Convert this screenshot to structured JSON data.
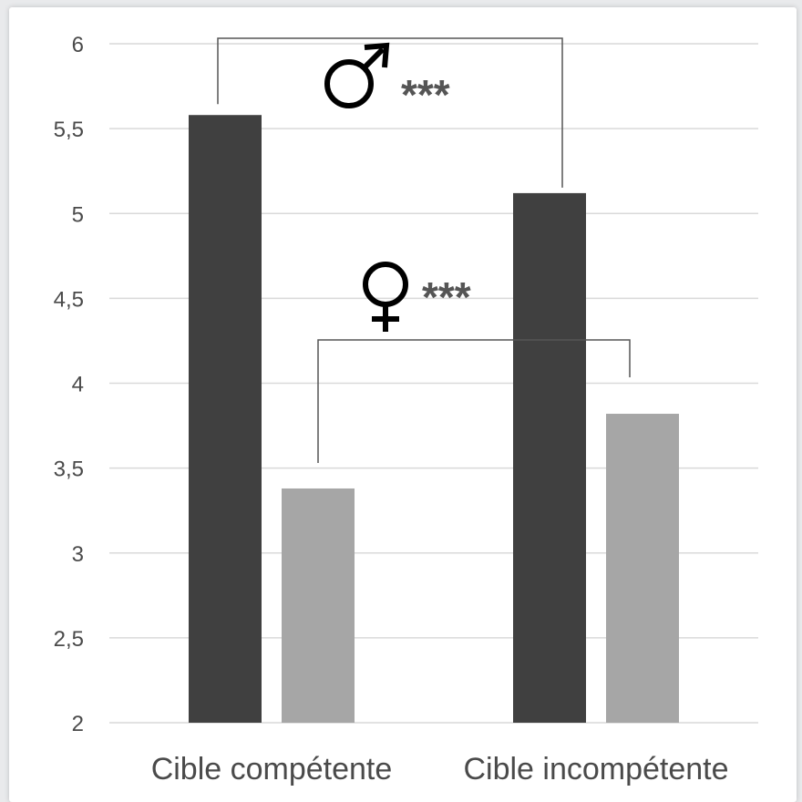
{
  "chart_data": {
    "type": "bar",
    "categories": [
      "Cible compétente",
      "Cible incompétente"
    ],
    "series": [
      {
        "values": [
          5.58,
          5.12
        ],
        "color": "#404040"
      },
      {
        "values": [
          3.38,
          3.82
        ],
        "color": "#a6a6a6"
      }
    ],
    "ylim": [
      2,
      6
    ],
    "yticks": [
      "2",
      "2,5",
      "3",
      "3,5",
      "4",
      "4,5",
      "5",
      "5,5",
      "6"
    ],
    "grid": true,
    "annotations": [
      {
        "symbol": "♂",
        "label": "***",
        "between_series": 0
      },
      {
        "symbol": "♀",
        "label": "***",
        "between_series": 1
      }
    ]
  }
}
